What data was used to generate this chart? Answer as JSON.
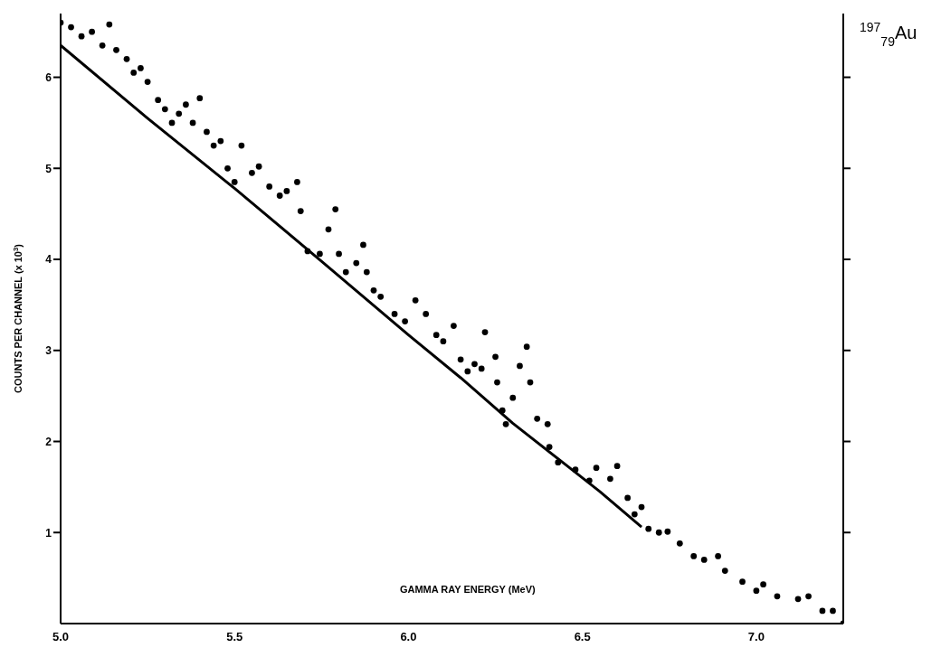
{
  "chart_data": {
    "type": "scatter",
    "title": "$^{197}$$_{79}$Au",
    "xlabel": "GAMMA RAY ENERGY (MeV)",
    "ylabel": "COUNTS PER CHANNEL (x 10$^{3}$)",
    "xlim": [
      5.0,
      7.25
    ],
    "ylim": [
      0,
      6.7
    ],
    "xticks": [
      {
        "value": 5.0,
        "label": "5.0"
      },
      {
        "value": 5.5,
        "label": "5.5"
      },
      {
        "value": 6.0,
        "label": "6.0"
      },
      {
        "value": 6.5,
        "label": "6.5"
      },
      {
        "value": 7.0,
        "label": "7.0"
      }
    ],
    "yticks": [
      1,
      2,
      3,
      4,
      5,
      6
    ],
    "grid": false,
    "series": [
      {
        "color": "#000000",
        "marker": "circle",
        "x": [
          5.0,
          5.03,
          5.06,
          5.09,
          5.12,
          5.14,
          5.16,
          5.19,
          5.21,
          5.23,
          5.25,
          5.28,
          5.3,
          5.32,
          5.34,
          5.36,
          5.38,
          5.4,
          5.42,
          5.44,
          5.46,
          5.48,
          5.5,
          5.52,
          5.55,
          5.57,
          5.6,
          5.63,
          5.65,
          5.68,
          5.69,
          5.71,
          5.745,
          5.77,
          5.79,
          5.8,
          5.82,
          5.85,
          5.87,
          5.88,
          5.9,
          5.92,
          5.96,
          5.99,
          6.02,
          6.05,
          6.08,
          6.1,
          6.13,
          6.15,
          6.17,
          6.19,
          6.21,
          6.22,
          6.25,
          6.255,
          6.27,
          6.28,
          6.3,
          6.32,
          6.34,
          6.35,
          6.37,
          6.4,
          6.405,
          6.43,
          6.48,
          6.52,
          6.54,
          6.58,
          6.6,
          6.63,
          6.65,
          6.67,
          6.69,
          6.72,
          6.745,
          6.78,
          6.82,
          6.85,
          6.89,
          6.91,
          6.96,
          7.0,
          7.02,
          7.06,
          7.12,
          7.15,
          7.19,
          7.22,
          7.25
        ],
        "values": [
          6.6,
          6.55,
          6.45,
          6.5,
          6.35,
          6.58,
          6.3,
          6.2,
          6.05,
          6.1,
          5.95,
          5.75,
          5.65,
          5.5,
          5.6,
          5.7,
          5.5,
          5.77,
          5.4,
          5.25,
          5.3,
          5.0,
          4.85,
          5.25,
          4.95,
          5.02,
          4.8,
          4.7,
          4.75,
          4.85,
          4.53,
          4.09,
          4.06,
          4.33,
          4.55,
          4.06,
          3.86,
          3.96,
          4.16,
          3.86,
          3.66,
          3.59,
          3.4,
          3.32,
          3.55,
          3.4,
          3.17,
          3.1,
          3.27,
          2.9,
          2.77,
          2.85,
          2.8,
          3.2,
          2.93,
          2.65,
          2.34,
          2.19,
          2.48,
          2.83,
          3.04,
          2.65,
          2.25,
          2.19,
          1.94,
          1.77,
          1.69,
          1.57,
          1.71,
          1.59,
          1.73,
          1.38,
          1.2,
          1.28,
          1.04,
          1.0,
          1.01,
          0.88,
          0.74,
          0.7,
          0.74,
          0.58,
          0.46,
          0.36,
          0.43,
          0.3,
          0.27,
          0.3,
          0.14,
          0.14,
          0.0
        ]
      },
      {
        "type": "line",
        "color": "#000000",
        "line_style": "solid",
        "marker": "none",
        "x": [
          5.0,
          5.25,
          5.5,
          5.75,
          6.0,
          6.15,
          6.3,
          6.45,
          6.55,
          6.67
        ],
        "values": [
          6.35,
          5.55,
          4.78,
          3.98,
          3.17,
          2.7,
          2.2,
          1.75,
          1.45,
          1.06
        ]
      }
    ]
  }
}
